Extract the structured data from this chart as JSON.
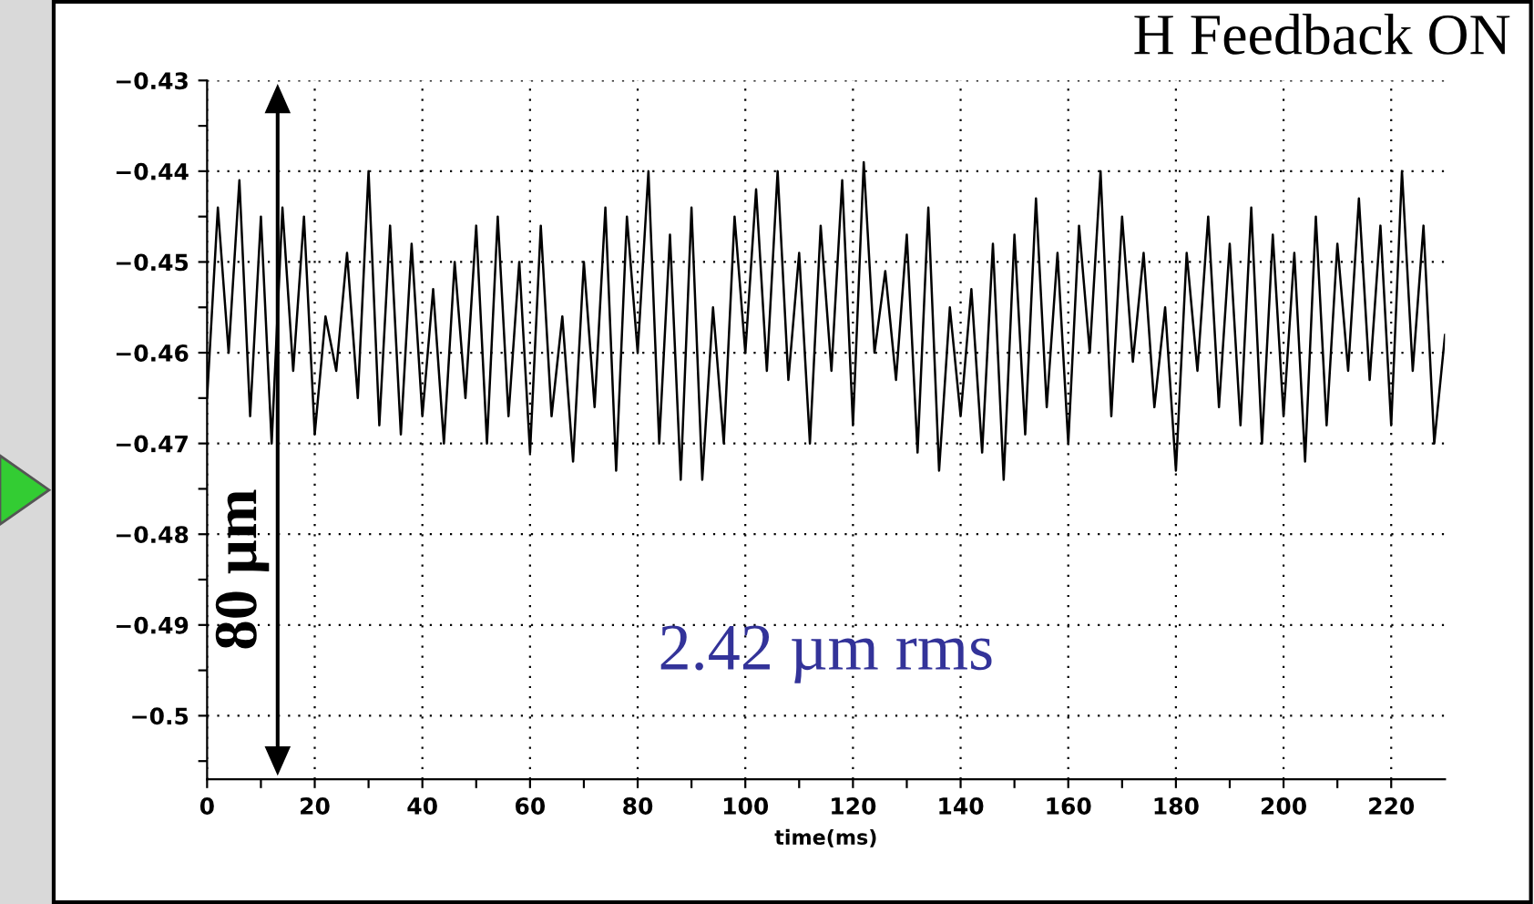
{
  "chart_data": {
    "type": "line",
    "xlabel": "time(ms)",
    "x": [
      0,
      2,
      4,
      6,
      8,
      10,
      12,
      14,
      16,
      18,
      20,
      22,
      24,
      26,
      28,
      30,
      32,
      34,
      36,
      38,
      40,
      42,
      44,
      46,
      48,
      50,
      52,
      54,
      56,
      58,
      60,
      62,
      64,
      66,
      68,
      70,
      72,
      74,
      76,
      78,
      80,
      82,
      84,
      86,
      88,
      90,
      92,
      94,
      96,
      98,
      100,
      102,
      104,
      106,
      108,
      110,
      112,
      114,
      116,
      118,
      120,
      122,
      124,
      126,
      128,
      130,
      132,
      134,
      136,
      138,
      140,
      142,
      144,
      146,
      148,
      150,
      152,
      154,
      156,
      158,
      160,
      162,
      164,
      166,
      168,
      170,
      172,
      174,
      176,
      178,
      180,
      182,
      184,
      186,
      188,
      190,
      192,
      194,
      196,
      198,
      200,
      202,
      204,
      206,
      208,
      210,
      212,
      214,
      216,
      218,
      220,
      222,
      224,
      226,
      228,
      230
    ],
    "series": [
      {
        "color": "#000000",
        "values": [
          -0.465,
          -0.444,
          -0.46,
          -0.441,
          -0.467,
          -0.445,
          -0.47,
          -0.444,
          -0.462,
          -0.445,
          -0.469,
          -0.456,
          -0.462,
          -0.449,
          -0.465,
          -0.44,
          -0.468,
          -0.446,
          -0.469,
          -0.448,
          -0.467,
          -0.453,
          -0.47,
          -0.45,
          -0.465,
          -0.446,
          -0.47,
          -0.445,
          -0.467,
          -0.45,
          -0.471,
          -0.446,
          -0.467,
          -0.456,
          -0.472,
          -0.45,
          -0.466,
          -0.444,
          -0.473,
          -0.445,
          -0.46,
          -0.44,
          -0.47,
          -0.447,
          -0.474,
          -0.444,
          -0.474,
          -0.455,
          -0.47,
          -0.445,
          -0.46,
          -0.442,
          -0.462,
          -0.44,
          -0.463,
          -0.449,
          -0.47,
          -0.446,
          -0.462,
          -0.441,
          -0.468,
          -0.439,
          -0.46,
          -0.451,
          -0.463,
          -0.447,
          -0.471,
          -0.444,
          -0.473,
          -0.455,
          -0.467,
          -0.453,
          -0.471,
          -0.448,
          -0.474,
          -0.447,
          -0.469,
          -0.443,
          -0.466,
          -0.449,
          -0.47,
          -0.446,
          -0.46,
          -0.44,
          -0.467,
          -0.445,
          -0.461,
          -0.449,
          -0.466,
          -0.455,
          -0.473,
          -0.449,
          -0.462,
          -0.445,
          -0.466,
          -0.448,
          -0.468,
          -0.444,
          -0.47,
          -0.447,
          -0.467,
          -0.449,
          -0.472,
          -0.445,
          -0.468,
          -0.448,
          -0.462,
          -0.443,
          -0.463,
          -0.446,
          -0.468,
          -0.44,
          -0.462,
          -0.446,
          -0.47,
          -0.458
        ]
      }
    ],
    "xlim": [
      0,
      230
    ],
    "ylim": [
      -0.507,
      -0.43
    ],
    "xticks": [
      0,
      {
        "value": 10,
        "label": null
      },
      20,
      {
        "value": 30,
        "label": null
      },
      40,
      {
        "value": 50,
        "label": null
      },
      60,
      {
        "value": 70,
        "label": null
      },
      80,
      {
        "value": 90,
        "label": null
      },
      100,
      {
        "value": 110,
        "label": null
      },
      120,
      {
        "value": 130,
        "label": null
      },
      140,
      {
        "value": 150,
        "label": null
      },
      160,
      {
        "value": 170,
        "label": null
      },
      180,
      {
        "value": 190,
        "label": null
      },
      200,
      {
        "value": 210,
        "label": null
      },
      220
    ],
    "yticks": [
      -0.43,
      {
        "value": -0.435,
        "label": null
      },
      -0.44,
      {
        "value": -0.445,
        "label": null
      },
      -0.45,
      {
        "value": -0.455,
        "label": null
      },
      -0.46,
      {
        "value": -0.465,
        "label": null
      },
      -0.47,
      {
        "value": -0.475,
        "label": null
      },
      -0.48,
      {
        "value": -0.485,
        "label": null
      },
      -0.49,
      {
        "value": -0.495,
        "label": null
      },
      -0.5,
      {
        "value": -0.505,
        "label": null
      }
    ],
    "grid": true,
    "line_style": "solid",
    "marker": "none",
    "annotations": [
      {
        "text": "H Feedback ON"
      },
      "80 µm",
      {
        "text": "2.42 µm rms"
      }
    ]
  }
}
